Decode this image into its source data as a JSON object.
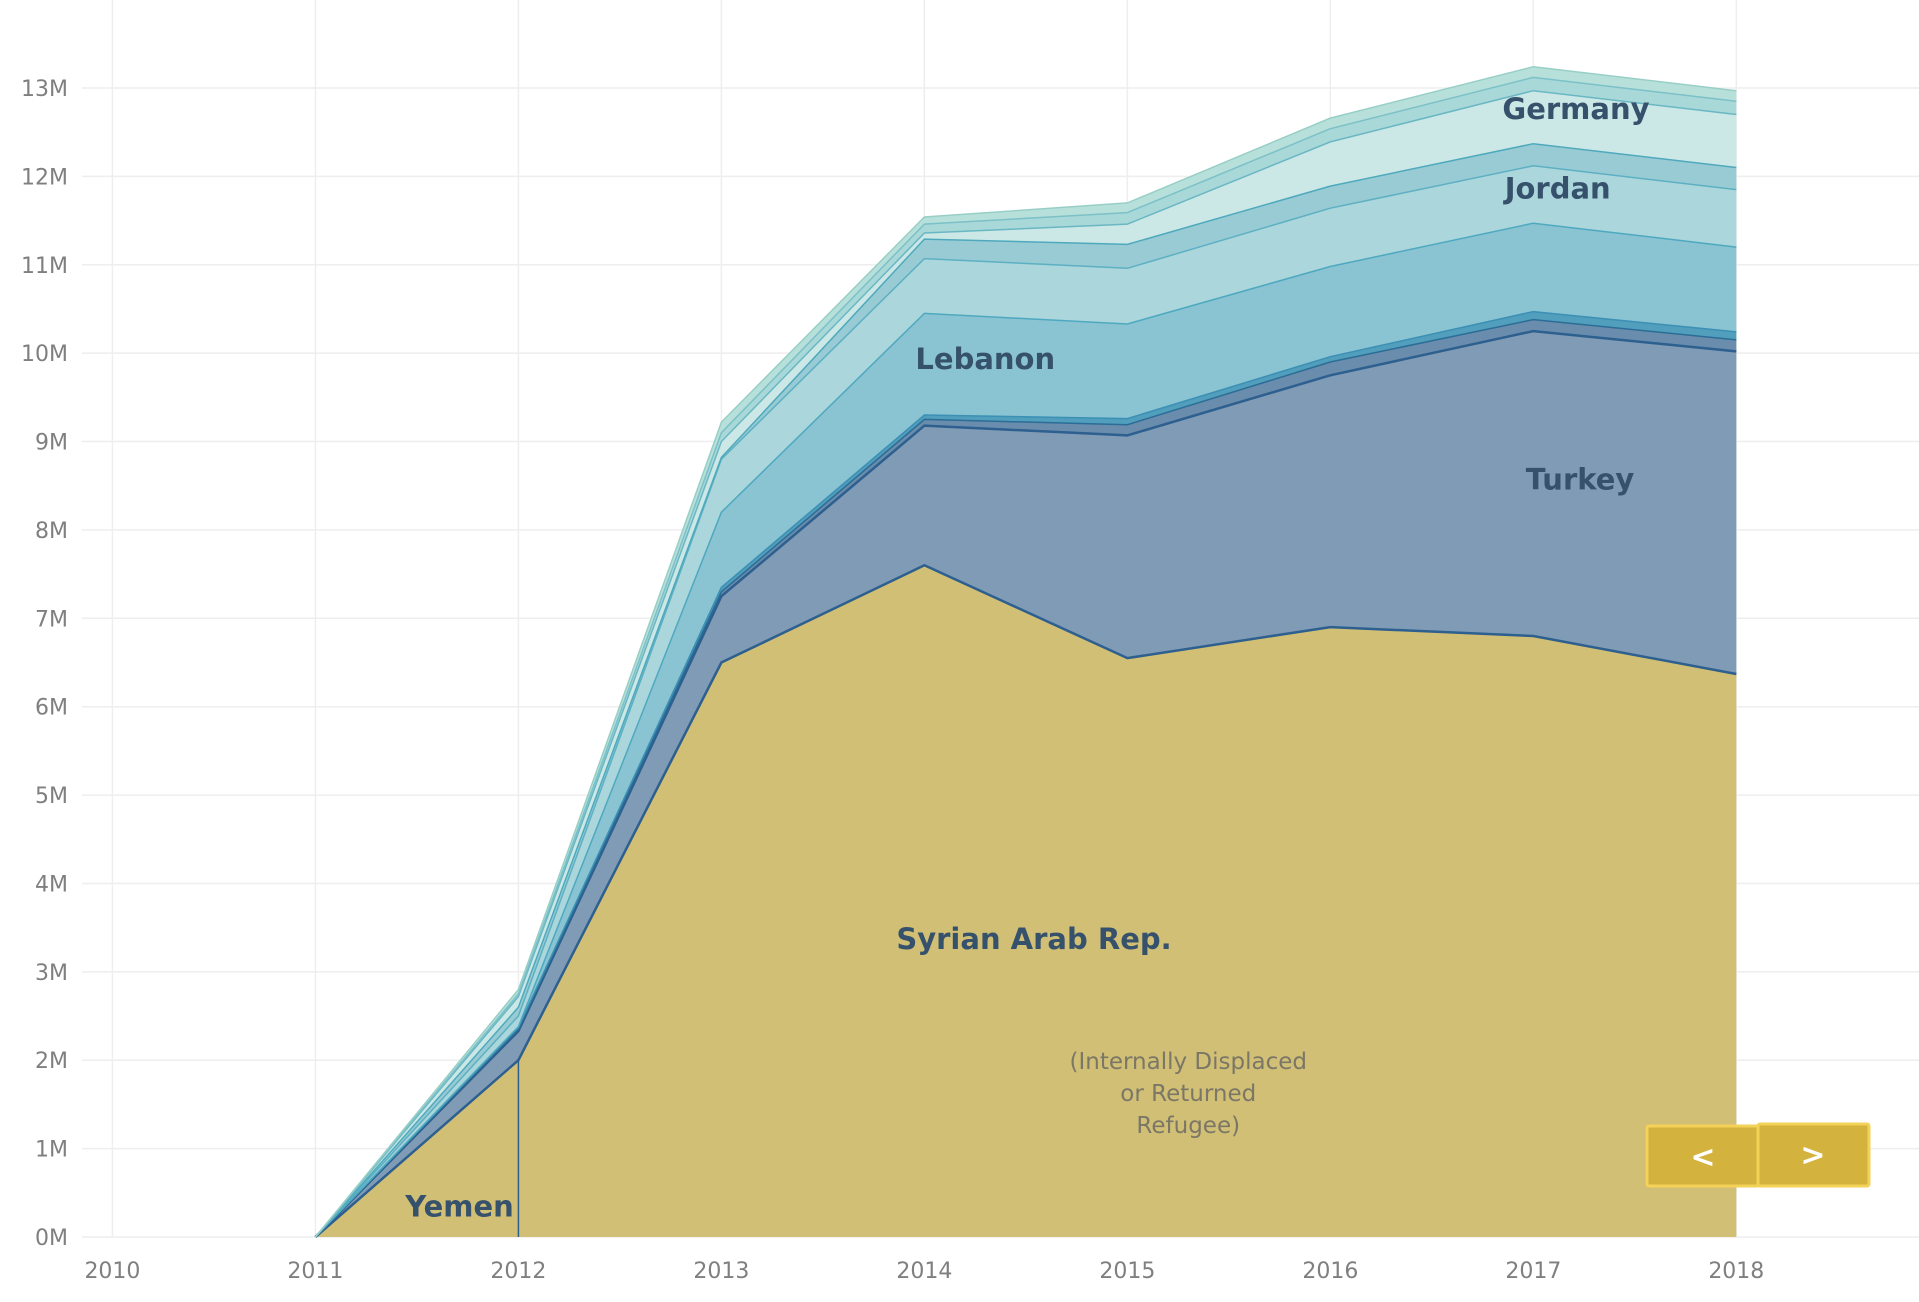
{
  "chart_data": {
    "type": "area",
    "stacked": true,
    "x": [
      2010,
      2011,
      2012,
      2013,
      2014,
      2015,
      2016,
      2017,
      2018
    ],
    "x_tick_labels": [
      "2010",
      "2011",
      "2012",
      "2013",
      "2014",
      "2015",
      "2016",
      "2017",
      "2018"
    ],
    "y_ticks": [
      0,
      1000000,
      2000000,
      3000000,
      4000000,
      5000000,
      6000000,
      7000000,
      8000000,
      9000000,
      10000000,
      11000000,
      12000000,
      13000000
    ],
    "y_tick_labels": [
      "0M",
      "1M",
      "2M",
      "3M",
      "4M",
      "5M",
      "6M",
      "7M",
      "8M",
      "9M",
      "10M",
      "11M",
      "12M",
      "13M"
    ],
    "ylim": [
      0,
      13800000
    ],
    "xlim": [
      2009.85,
      2018.9
    ],
    "grid": true,
    "series": [
      {
        "name": "Syrian Arab Rep.",
        "color": "#d0bd72",
        "edge": "#2d5f8f",
        "values": [
          null,
          0,
          2000000,
          6500000,
          7600000,
          6550000,
          6900000,
          6800000,
          6370000
        ]
      },
      {
        "name": "Yemen",
        "color": "#7b98b3",
        "edge": "#2d5f8f",
        "values": [
          null,
          0,
          330000,
          750000,
          1580000,
          2520000,
          2850000,
          3450000,
          3650000
        ]
      },
      {
        "name": "",
        "color": "#6589aa",
        "edge": "#2b6d96",
        "values": [
          null,
          0,
          20000,
          50000,
          70000,
          120000,
          150000,
          130000,
          130000
        ]
      },
      {
        "name": "",
        "color": "#4b9bbb",
        "edge": "#3b90b4",
        "values": [
          null,
          0,
          20000,
          50000,
          50000,
          70000,
          60000,
          90000,
          90000
        ]
      },
      {
        "name": "Lebanon",
        "color": "#86c1cf",
        "edge": "#4ea9c0",
        "values": [
          null,
          0,
          10000,
          850000,
          1150000,
          1070000,
          1020000,
          1000000,
          960000
        ]
      },
      {
        "name": "Jordan",
        "color": "#a8d5da",
        "edge": "#5db0c3",
        "values": [
          null,
          0,
          120000,
          600000,
          620000,
          630000,
          660000,
          650000,
          650000
        ]
      },
      {
        "name": "",
        "color": "#95c9d3",
        "edge": "#4fa9bd",
        "values": [
          null,
          0,
          100000,
          20000,
          220000,
          270000,
          250000,
          250000,
          250000
        ]
      },
      {
        "name": "Germany",
        "color": "#c9e7e6",
        "edge": "#6ab7c4",
        "values": [
          null,
          0,
          120000,
          180000,
          70000,
          230000,
          500000,
          600000,
          600000
        ]
      },
      {
        "name": "",
        "color": "#a6d7d7",
        "edge": "#7cc0c8",
        "values": [
          null,
          0,
          30000,
          100000,
          100000,
          130000,
          150000,
          150000,
          150000
        ]
      },
      {
        "name": "",
        "color": "#b6dfd9",
        "edge": "#97cfc7",
        "values": [
          null,
          0,
          50000,
          120000,
          80000,
          110000,
          120000,
          120000,
          120000
        ]
      }
    ],
    "area_labels": [
      {
        "text": "Syrian Arab Rep.",
        "x": 2014.54,
        "y": 3260000
      },
      {
        "text": "Yemen",
        "x": 2011.71,
        "y": 230000
      },
      {
        "text": "Turkey",
        "x": 2017.23,
        "y": 8460000
      },
      {
        "text": "Lebanon",
        "x": 2014.3,
        "y": 9820000
      },
      {
        "text": "Jordan",
        "x": 2017.12,
        "y": 11750000
      },
      {
        "text": "Germany",
        "x": 2017.21,
        "y": 12650000
      }
    ],
    "annotation": {
      "lines": [
        "(Internally Displaced",
        "or Returned",
        "Refugee)"
      ],
      "x": 2015.3,
      "y": 1900000
    }
  },
  "nav": {
    "prev_label": "<",
    "next_label": ">",
    "color": "#d3b33e",
    "border": "#f3d257"
  }
}
